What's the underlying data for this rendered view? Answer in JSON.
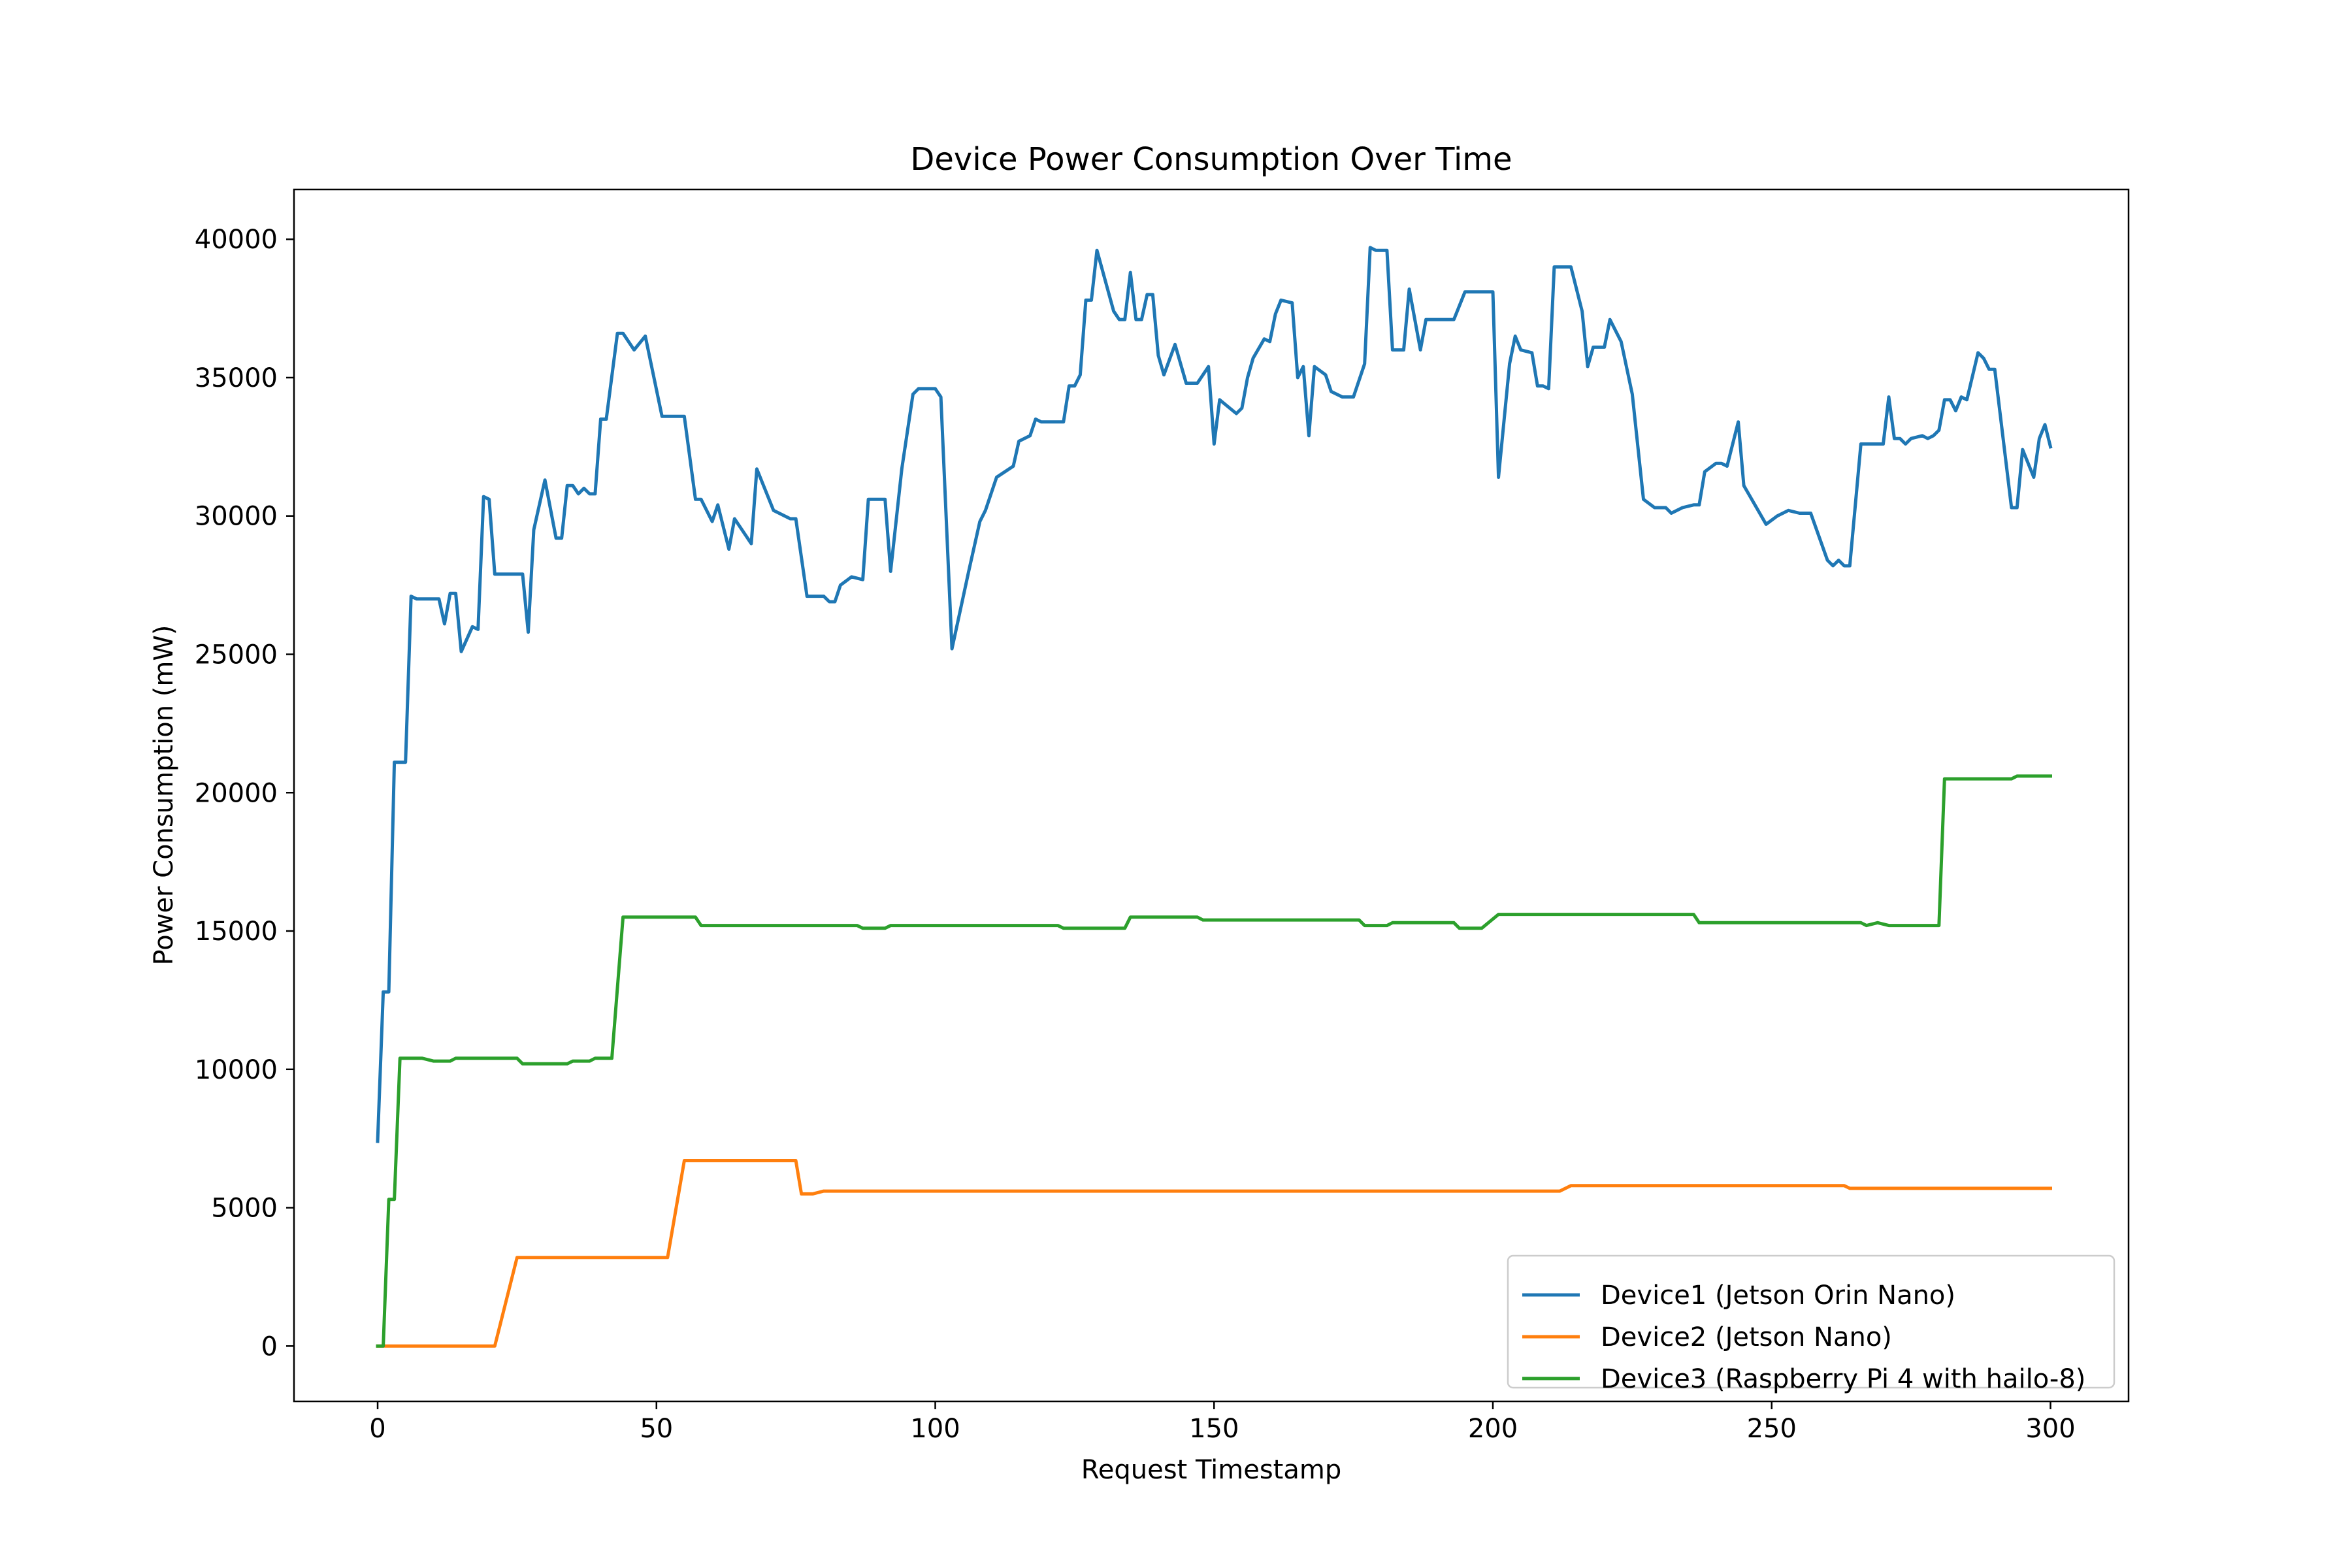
{
  "chart_data": {
    "type": "line",
    "title": "Device Power Consumption Over Time",
    "xlabel": "Request Timestamp",
    "ylabel": "Power Consumption (mW)",
    "xlim": [
      -15,
      314
    ],
    "ylim": [
      -2000,
      41800
    ],
    "xticks": [
      0,
      50,
      100,
      150,
      200,
      250,
      300
    ],
    "yticks": [
      0,
      5000,
      10000,
      15000,
      20000,
      25000,
      30000,
      35000,
      40000
    ],
    "grid": false,
    "legend_position": "bottom-right",
    "series": [
      {
        "name": "Device1 (Jetson Orin Nano)",
        "color": "#1f77b4",
        "points": [
          [
            0,
            7400
          ],
          [
            1,
            12800
          ],
          [
            2,
            12800
          ],
          [
            3,
            21100
          ],
          [
            4,
            21100
          ],
          [
            5,
            21100
          ],
          [
            6,
            27100
          ],
          [
            7,
            27000
          ],
          [
            8,
            27000
          ],
          [
            10,
            27000
          ],
          [
            11,
            27000
          ],
          [
            12,
            26100
          ],
          [
            13,
            27200
          ],
          [
            14,
            27200
          ],
          [
            15,
            25100
          ],
          [
            17,
            26000
          ],
          [
            18,
            25900
          ],
          [
            19,
            30700
          ],
          [
            20,
            30600
          ],
          [
            21,
            27900
          ],
          [
            23,
            27900
          ],
          [
            25,
            27900
          ],
          [
            26,
            27900
          ],
          [
            27,
            25800
          ],
          [
            28,
            29500
          ],
          [
            30,
            31300
          ],
          [
            32,
            29200
          ],
          [
            33,
            29200
          ],
          [
            34,
            31100
          ],
          [
            35,
            31100
          ],
          [
            36,
            30800
          ],
          [
            37,
            31000
          ],
          [
            38,
            30800
          ],
          [
            39,
            30800
          ],
          [
            40,
            33500
          ],
          [
            41,
            33500
          ],
          [
            43,
            36600
          ],
          [
            44,
            36600
          ],
          [
            46,
            36000
          ],
          [
            48,
            36500
          ],
          [
            51,
            33600
          ],
          [
            53,
            33600
          ],
          [
            55,
            33600
          ],
          [
            57,
            30600
          ],
          [
            58,
            30600
          ],
          [
            60,
            29800
          ],
          [
            61,
            30400
          ],
          [
            63,
            28800
          ],
          [
            64,
            29900
          ],
          [
            67,
            29000
          ],
          [
            68,
            31700
          ],
          [
            71,
            30200
          ],
          [
            74,
            29900
          ],
          [
            75,
            29900
          ],
          [
            77,
            27100
          ],
          [
            80,
            27100
          ],
          [
            81,
            26900
          ],
          [
            82,
            26900
          ],
          [
            83,
            27500
          ],
          [
            85,
            27800
          ],
          [
            87,
            27700
          ],
          [
            88,
            30600
          ],
          [
            90,
            30600
          ],
          [
            91,
            30600
          ],
          [
            92,
            28000
          ],
          [
            94,
            31700
          ],
          [
            96,
            34400
          ],
          [
            97,
            34600
          ],
          [
            100,
            34600
          ],
          [
            101,
            34300
          ],
          [
            103,
            25200
          ],
          [
            106,
            28000
          ],
          [
            108,
            29800
          ],
          [
            109,
            30200
          ],
          [
            111,
            31400
          ],
          [
            114,
            31800
          ],
          [
            115,
            32700
          ],
          [
            117,
            32900
          ],
          [
            118,
            33500
          ],
          [
            119,
            33400
          ],
          [
            122,
            33400
          ],
          [
            123,
            33400
          ],
          [
            124,
            34700
          ],
          [
            125,
            34700
          ],
          [
            126,
            35100
          ],
          [
            127,
            37800
          ],
          [
            128,
            37800
          ],
          [
            129,
            39600
          ],
          [
            132,
            37400
          ],
          [
            133,
            37100
          ],
          [
            134,
            37100
          ],
          [
            135,
            38800
          ],
          [
            136,
            37100
          ],
          [
            137,
            37100
          ],
          [
            138,
            38000
          ],
          [
            139,
            38000
          ],
          [
            140,
            35800
          ],
          [
            141,
            35100
          ],
          [
            143,
            36200
          ],
          [
            145,
            34800
          ],
          [
            147,
            34800
          ],
          [
            149,
            35400
          ],
          [
            150,
            32600
          ],
          [
            151,
            34200
          ],
          [
            154,
            33700
          ],
          [
            155,
            33900
          ],
          [
            156,
            35000
          ],
          [
            157,
            35700
          ],
          [
            159,
            36400
          ],
          [
            160,
            36300
          ],
          [
            161,
            37300
          ],
          [
            162,
            37800
          ],
          [
            164,
            37700
          ],
          [
            165,
            35000
          ],
          [
            166,
            35400
          ],
          [
            167,
            32900
          ],
          [
            168,
            35400
          ],
          [
            170,
            35100
          ],
          [
            171,
            34500
          ],
          [
            173,
            34300
          ],
          [
            175,
            34300
          ],
          [
            177,
            35500
          ],
          [
            178,
            39700
          ],
          [
            179,
            39600
          ],
          [
            181,
            39600
          ],
          [
            182,
            36000
          ],
          [
            184,
            36000
          ],
          [
            185,
            38200
          ],
          [
            187,
            36000
          ],
          [
            188,
            37100
          ],
          [
            191,
            37100
          ],
          [
            193,
            37100
          ],
          [
            194,
            37600
          ],
          [
            195,
            38100
          ],
          [
            198,
            38100
          ],
          [
            200,
            38100
          ],
          [
            201,
            31400
          ],
          [
            203,
            35500
          ],
          [
            204,
            36500
          ],
          [
            205,
            36000
          ],
          [
            207,
            35900
          ],
          [
            208,
            34700
          ],
          [
            209,
            34700
          ],
          [
            210,
            34600
          ],
          [
            211,
            39000
          ],
          [
            214,
            39000
          ],
          [
            216,
            37400
          ],
          [
            217,
            35400
          ],
          [
            218,
            36100
          ],
          [
            220,
            36100
          ],
          [
            221,
            37100
          ],
          [
            223,
            36300
          ],
          [
            225,
            34400
          ],
          [
            227,
            30600
          ],
          [
            229,
            30300
          ],
          [
            231,
            30300
          ],
          [
            232,
            30100
          ],
          [
            234,
            30300
          ],
          [
            236,
            30400
          ],
          [
            237,
            30400
          ],
          [
            238,
            31600
          ],
          [
            240,
            31900
          ],
          [
            241,
            31900
          ],
          [
            242,
            31800
          ],
          [
            244,
            33400
          ],
          [
            245,
            31100
          ],
          [
            249,
            29700
          ],
          [
            251,
            30000
          ],
          [
            253,
            30200
          ],
          [
            255,
            30100
          ],
          [
            257,
            30100
          ],
          [
            260,
            28400
          ],
          [
            261,
            28200
          ],
          [
            262,
            28400
          ],
          [
            263,
            28200
          ],
          [
            264,
            28200
          ],
          [
            266,
            32600
          ],
          [
            268,
            32600
          ],
          [
            270,
            32600
          ],
          [
            271,
            34300
          ],
          [
            272,
            32800
          ],
          [
            273,
            32800
          ],
          [
            274,
            32600
          ],
          [
            275,
            32800
          ],
          [
            277,
            32900
          ],
          [
            278,
            32800
          ],
          [
            279,
            32900
          ],
          [
            280,
            33100
          ],
          [
            281,
            34200
          ],
          [
            282,
            34200
          ],
          [
            283,
            33800
          ],
          [
            284,
            34300
          ],
          [
            285,
            34200
          ],
          [
            287,
            35900
          ],
          [
            288,
            35700
          ],
          [
            289,
            35300
          ],
          [
            290,
            35300
          ],
          [
            293,
            30300
          ],
          [
            294,
            30300
          ],
          [
            295,
            32400
          ],
          [
            297,
            31400
          ],
          [
            298,
            32800
          ],
          [
            299,
            33300
          ],
          [
            300,
            32500
          ]
        ]
      },
      {
        "name": "Device2 (Jetson Nano)",
        "color": "#ff7f0e",
        "points": [
          [
            0,
            0
          ],
          [
            21,
            0
          ],
          [
            25,
            3200
          ],
          [
            52,
            3200
          ],
          [
            55,
            6700
          ],
          [
            75,
            6700
          ],
          [
            76,
            5500
          ],
          [
            78,
            5500
          ],
          [
            80,
            5600
          ],
          [
            212,
            5600
          ],
          [
            214,
            5800
          ],
          [
            263,
            5800
          ],
          [
            264,
            5700
          ],
          [
            300,
            5700
          ]
        ]
      },
      {
        "name": "Device3 (Raspberry Pi 4 with hailo-8)",
        "color": "#2ca02c",
        "points": [
          [
            0,
            0
          ],
          [
            1,
            0
          ],
          [
            2,
            5300
          ],
          [
            3,
            5300
          ],
          [
            4,
            10400
          ],
          [
            8,
            10400
          ],
          [
            10,
            10300
          ],
          [
            13,
            10300
          ],
          [
            14,
            10400
          ],
          [
            25,
            10400
          ],
          [
            26,
            10200
          ],
          [
            34,
            10200
          ],
          [
            35,
            10300
          ],
          [
            38,
            10300
          ],
          [
            39,
            10400
          ],
          [
            42,
            10400
          ],
          [
            44,
            15500
          ],
          [
            57,
            15500
          ],
          [
            58,
            15200
          ],
          [
            86,
            15200
          ],
          [
            87,
            15100
          ],
          [
            91,
            15100
          ],
          [
            92,
            15200
          ],
          [
            122,
            15200
          ],
          [
            123,
            15100
          ],
          [
            134,
            15100
          ],
          [
            135,
            15500
          ],
          [
            147,
            15500
          ],
          [
            148,
            15400
          ],
          [
            176,
            15400
          ],
          [
            177,
            15200
          ],
          [
            181,
            15200
          ],
          [
            182,
            15300
          ],
          [
            193,
            15300
          ],
          [
            194,
            15100
          ],
          [
            198,
            15100
          ],
          [
            201,
            15600
          ],
          [
            236,
            15600
          ],
          [
            237,
            15300
          ],
          [
            266,
            15300
          ],
          [
            267,
            15200
          ],
          [
            269,
            15300
          ],
          [
            271,
            15200
          ],
          [
            280,
            15200
          ],
          [
            281,
            20500
          ],
          [
            293,
            20500
          ],
          [
            294,
            20600
          ],
          [
            300,
            20600
          ]
        ]
      }
    ]
  }
}
